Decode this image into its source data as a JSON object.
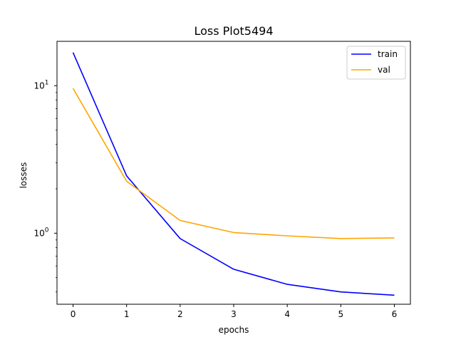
{
  "chart_data": {
    "type": "line",
    "title": "Loss Plot5494",
    "xlabel": "epochs",
    "ylabel": "losses",
    "x": [
      0,
      1,
      2,
      3,
      4,
      5,
      6
    ],
    "xlim": [
      -0.3,
      6.3
    ],
    "ylim": [
      0.33,
      20.0
    ],
    "yscale": "log",
    "x_ticks": [
      0,
      1,
      2,
      3,
      4,
      5,
      6
    ],
    "y_ticks": [
      {
        "value": 1,
        "label": "10",
        "exp": "0"
      },
      {
        "value": 10,
        "label": "10",
        "exp": "1"
      }
    ],
    "grid": false,
    "legend_position": "top-right",
    "series": [
      {
        "name": "train",
        "color": "#0000ff",
        "values": [
          16.8,
          2.45,
          0.92,
          0.57,
          0.45,
          0.4,
          0.38
        ]
      },
      {
        "name": "val",
        "color": "#ffa500",
        "values": [
          9.6,
          2.25,
          1.22,
          1.01,
          0.96,
          0.92,
          0.93
        ]
      }
    ]
  }
}
